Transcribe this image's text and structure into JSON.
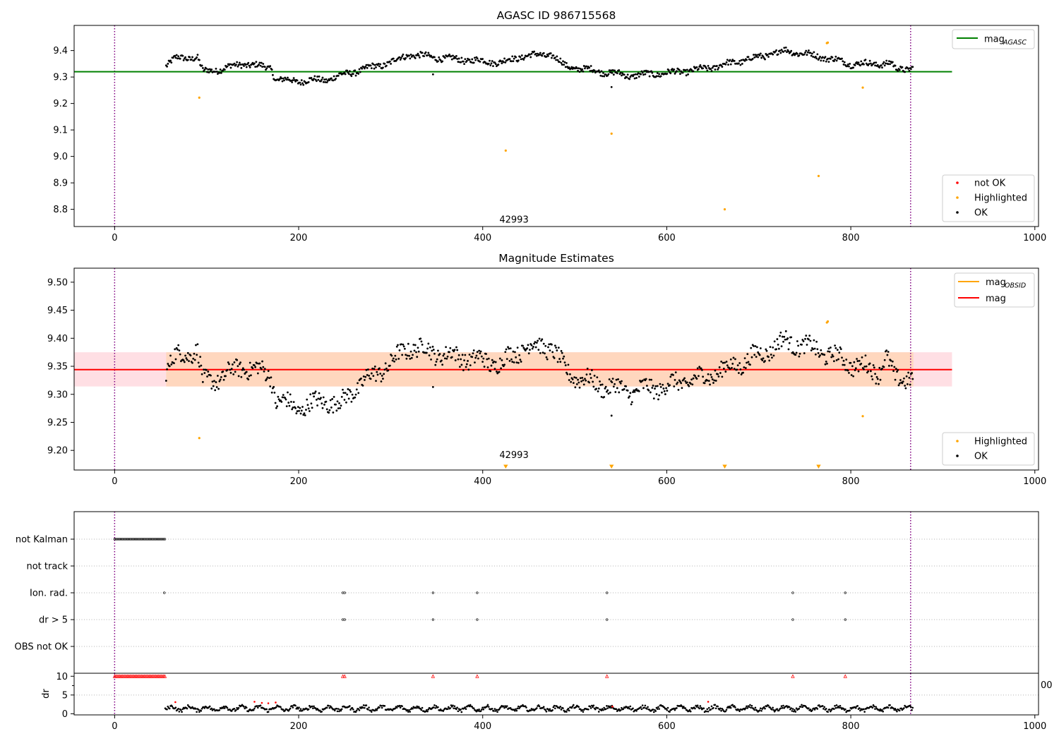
{
  "chart_data": [
    {
      "type": "scatter",
      "title": "AGASC ID 986715568",
      "xlabel": "",
      "ylabel": "",
      "xlim": [
        -44,
        1004
      ],
      "ylim": [
        8.735,
        9.495
      ],
      "x_ticks": [
        0,
        200,
        400,
        600,
        800,
        1000
      ],
      "y_ticks": [
        8.8,
        8.9,
        9.0,
        9.1,
        9.2,
        9.3,
        9.4
      ],
      "vlines": [
        0,
        865
      ],
      "annotations": [
        {
          "text": "42993",
          "x": 434,
          "y": 8.76
        }
      ],
      "lines": [
        {
          "name": "mag_AGASC",
          "label_main": "mag",
          "label_sub": "AGASC",
          "y": 9.32,
          "x_range": [
            -44,
            910
          ],
          "color": "#008000"
        }
      ],
      "legend_top": [
        {
          "label": "mag",
          "sub": "AGASC",
          "color": "#008000",
          "kind": "line"
        }
      ],
      "legend_bottom": [
        {
          "label": "not OK",
          "color": "#ff0000",
          "kind": "dot"
        },
        {
          "label": "Highlighted",
          "color": "#ffa500",
          "kind": "dot"
        },
        {
          "label": "OK",
          "color": "#000000",
          "kind": "dot"
        }
      ],
      "ok_points": {
        "x_range": [
          56,
          868
        ],
        "keypoints": [
          [
            56,
            9.345
          ],
          [
            66,
            9.37
          ],
          [
            90,
            9.375
          ],
          [
            96,
            9.32
          ],
          [
            115,
            9.33
          ],
          [
            140,
            9.35
          ],
          [
            170,
            9.335
          ],
          [
            175,
            9.29
          ],
          [
            200,
            9.285
          ],
          [
            230,
            9.29
          ],
          [
            260,
            9.32
          ],
          [
            300,
            9.355
          ],
          [
            320,
            9.385
          ],
          [
            360,
            9.37
          ],
          [
            420,
            9.355
          ],
          [
            445,
            9.38
          ],
          [
            475,
            9.385
          ],
          [
            490,
            9.34
          ],
          [
            520,
            9.325
          ],
          [
            560,
            9.305
          ],
          [
            600,
            9.315
          ],
          [
            640,
            9.33
          ],
          [
            680,
            9.36
          ],
          [
            730,
            9.4
          ],
          [
            770,
            9.375
          ],
          [
            800,
            9.35
          ],
          [
            845,
            9.35
          ],
          [
            848,
            9.33
          ],
          [
            868,
            9.335
          ]
        ],
        "amplitude": 0.018,
        "outliers": [
          [
            346,
            9.31
          ],
          [
            540,
            9.262
          ]
        ]
      },
      "highlighted": [
        [
          92,
          9.222
        ],
        [
          425,
          9.022
        ],
        [
          540,
          9.086
        ],
        [
          663,
          8.8
        ],
        [
          765,
          8.926
        ],
        [
          774,
          9.428
        ],
        [
          775,
          9.43
        ],
        [
          813,
          9.26
        ]
      ]
    },
    {
      "type": "scatter",
      "title": "Magnitude Estimates",
      "xlabel": "",
      "ylabel": "",
      "xlim": [
        -44,
        1004
      ],
      "ylim": [
        9.165,
        9.525
      ],
      "x_ticks": [
        0,
        200,
        400,
        600,
        800,
        1000
      ],
      "y_ticks": [
        9.2,
        9.25,
        9.3,
        9.35,
        9.4,
        9.45,
        9.5
      ],
      "vlines": [
        0,
        865
      ],
      "annotations": [
        {
          "text": "42993",
          "x": 434,
          "y": 9.175
        }
      ],
      "bands": [
        {
          "y0": 9.314,
          "y1": 9.375,
          "x_range": [
            -44,
            910
          ],
          "color": "#ffdfe4"
        },
        {
          "y0": 9.314,
          "y1": 9.375,
          "x_range": [
            56,
            868
          ],
          "color": "#ffd7be"
        }
      ],
      "lines": [
        {
          "name": "mag",
          "y": 9.344,
          "x_range": [
            -44,
            910
          ],
          "color": "#ff0000"
        },
        {
          "name": "mag_OBSID",
          "y": 9.344,
          "x_range": [
            56,
            868
          ],
          "color": "#ffa500"
        }
      ],
      "legend_top": [
        {
          "label": "mag",
          "sub": "OBSID",
          "color": "#ffa500",
          "kind": "line"
        },
        {
          "label": "mag",
          "sub": "",
          "color": "#ff0000",
          "kind": "line"
        }
      ],
      "legend_bottom": [
        {
          "label": "Highlighted",
          "color": "#ffa500",
          "kind": "dot"
        },
        {
          "label": "OK",
          "color": "#000000",
          "kind": "dot"
        }
      ],
      "ok_points": {
        "x_range": [
          56,
          868
        ],
        "keypoints": [
          [
            56,
            9.345
          ],
          [
            66,
            9.365
          ],
          [
            90,
            9.38
          ],
          [
            96,
            9.32
          ],
          [
            115,
            9.33
          ],
          [
            140,
            9.35
          ],
          [
            170,
            9.335
          ],
          [
            175,
            9.29
          ],
          [
            200,
            9.275
          ],
          [
            230,
            9.29
          ],
          [
            245,
            9.28
          ],
          [
            260,
            9.31
          ],
          [
            300,
            9.355
          ],
          [
            320,
            9.385
          ],
          [
            360,
            9.37
          ],
          [
            420,
            9.355
          ],
          [
            445,
            9.385
          ],
          [
            475,
            9.385
          ],
          [
            490,
            9.34
          ],
          [
            520,
            9.32
          ],
          [
            560,
            9.305
          ],
          [
            600,
            9.315
          ],
          [
            640,
            9.33
          ],
          [
            680,
            9.355
          ],
          [
            730,
            9.395
          ],
          [
            770,
            9.375
          ],
          [
            800,
            9.355
          ],
          [
            830,
            9.34
          ],
          [
            838,
            9.37
          ],
          [
            848,
            9.325
          ],
          [
            868,
            9.335
          ]
        ],
        "amplitude": 0.025,
        "outliers": [
          [
            346,
            9.313
          ],
          [
            540,
            9.262
          ]
        ]
      },
      "highlighted": [
        [
          92,
          9.222
        ],
        [
          774,
          9.428
        ],
        [
          775,
          9.43
        ],
        [
          813,
          9.261
        ]
      ],
      "out_of_range_markers": [
        425,
        540,
        663,
        765
      ]
    },
    {
      "type": "scatter",
      "title": "",
      "xlabel": "",
      "ylabel": "",
      "xlim": [
        -44,
        1004
      ],
      "categories": [
        "not Kalman",
        "not track",
        "Ion. rad.",
        "dr > 5",
        "OBS not OK"
      ],
      "vlines": [
        0,
        865
      ],
      "flags": {
        "not Kalman": {
          "x_range": [
            0,
            55
          ]
        },
        "not track": {
          "x_range": null
        },
        "Ion. rad.": {
          "x": [
            54,
            248,
            250,
            346,
            394,
            535,
            737,
            794
          ]
        },
        "dr > 5": {
          "x": [
            248,
            250,
            346,
            394,
            535,
            737,
            794
          ]
        },
        "OBS not OK": {
          "x": []
        }
      }
    },
    {
      "type": "scatter",
      "title": "",
      "xlabel": "",
      "ylabel": "dr",
      "xlim": [
        -44,
        1004
      ],
      "ylim": [
        -0.3,
        10.8
      ],
      "x_ticks": [
        0,
        200,
        400,
        600,
        800,
        1000
      ],
      "y_ticks": [
        0,
        5,
        10
      ],
      "vlines": [
        0,
        865
      ],
      "edge_label": "00",
      "clipped_dr": {
        "x_range": [
          0,
          55
        ],
        "extra_x": [
          248,
          250,
          346,
          394,
          535,
          737,
          794
        ],
        "y": 10,
        "color": "#ff0000"
      },
      "dr_points": {
        "x_range": [
          55,
          868
        ],
        "mean": 1.4,
        "amplitude": 0.9
      },
      "red_points": [
        [
          66,
          3.1
        ],
        [
          152,
          3.2
        ],
        [
          160,
          2.9
        ],
        [
          167,
          2.8
        ],
        [
          175,
          3.0
        ],
        [
          541,
          1.9
        ],
        [
          645,
          3.2
        ]
      ]
    }
  ]
}
